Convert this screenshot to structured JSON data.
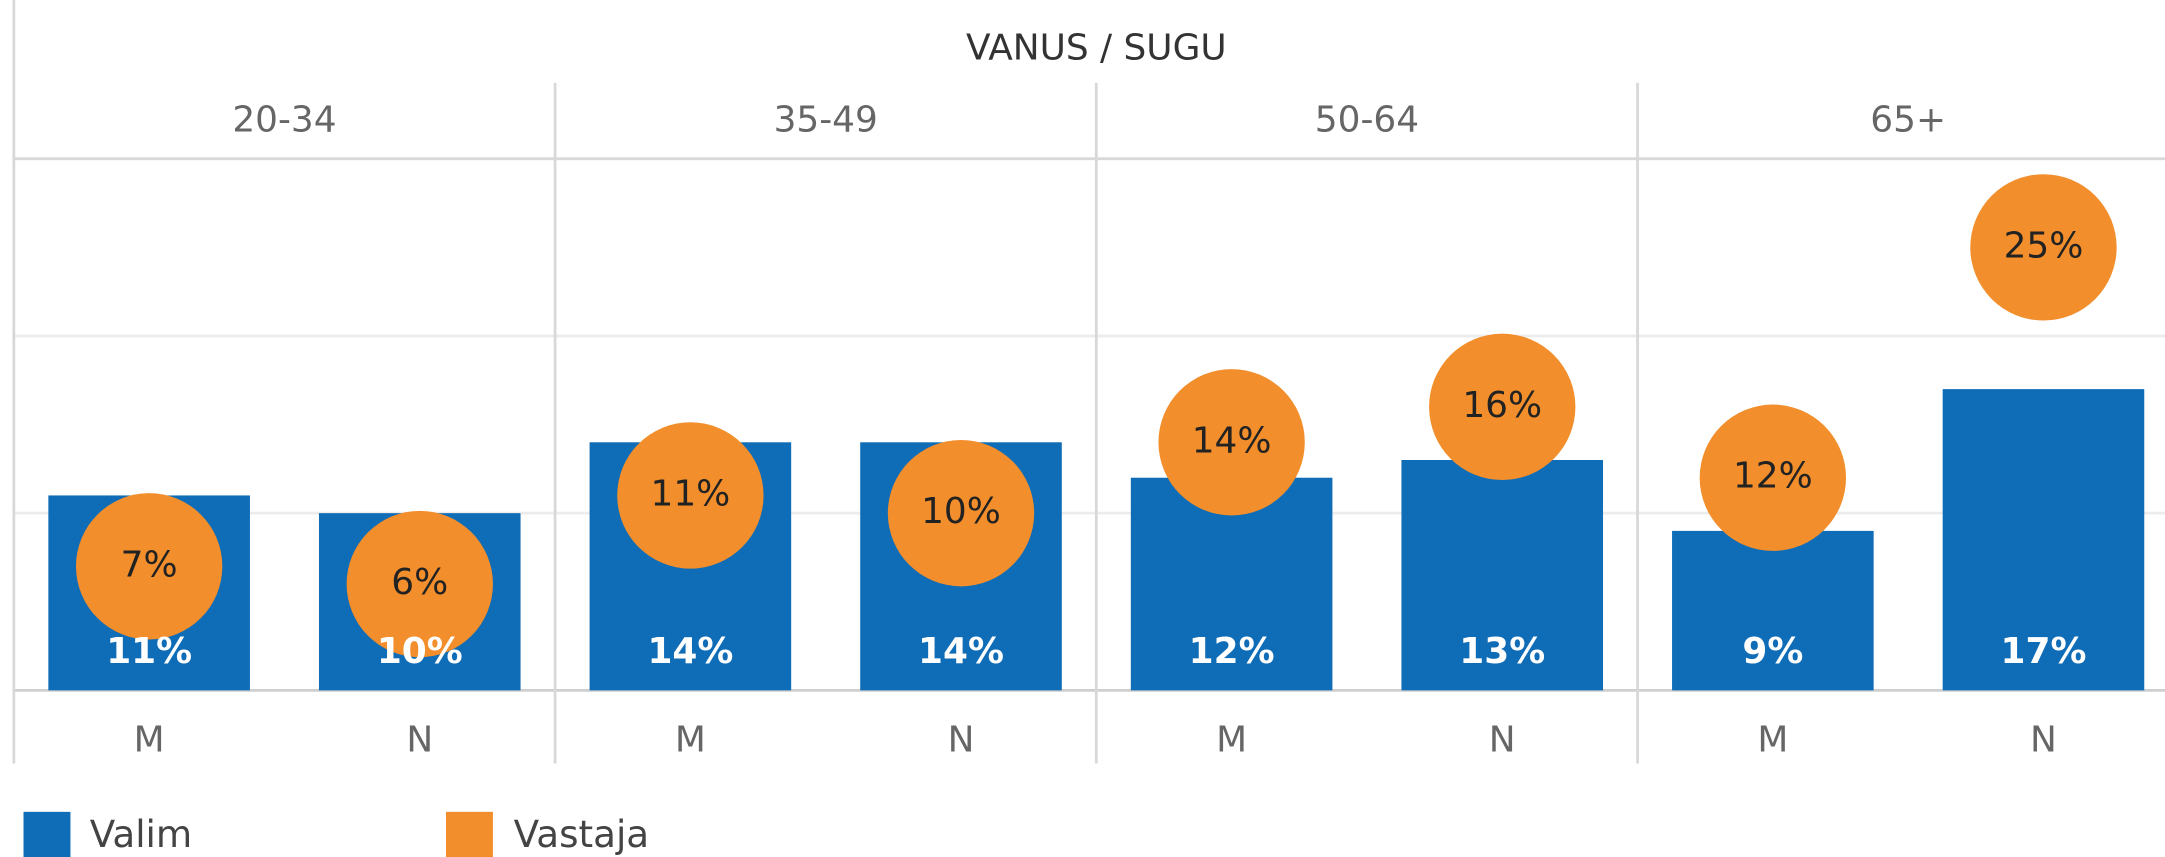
{
  "chart_data": {
    "type": "bar_dot",
    "title": "VANUS / SUGU",
    "groups": [
      "20-34",
      "35-49",
      "50-64",
      "65+"
    ],
    "categories": [
      "M",
      "N",
      "M",
      "N",
      "M",
      "N",
      "M",
      "N"
    ],
    "ylim": [
      0,
      30
    ],
    "yticks": [
      0,
      10,
      20,
      30
    ],
    "grid": true,
    "series": [
      {
        "name": "Valim",
        "color": "#0f6cb6",
        "values": [
          11,
          10,
          14,
          14,
          12,
          13,
          9,
          17
        ],
        "value_labels": [
          "11%",
          "10%",
          "14%",
          "14%",
          "12%",
          "13%",
          "9%",
          "17%"
        ]
      },
      {
        "name": "Vastaja",
        "color": "#f28e2b",
        "values": [
          7,
          6,
          11,
          10,
          14,
          16,
          12,
          25
        ],
        "value_labels": [
          "7%",
          "6%",
          "11%",
          "10%",
          "14%",
          "16%",
          "12%",
          "25%"
        ]
      }
    ]
  }
}
